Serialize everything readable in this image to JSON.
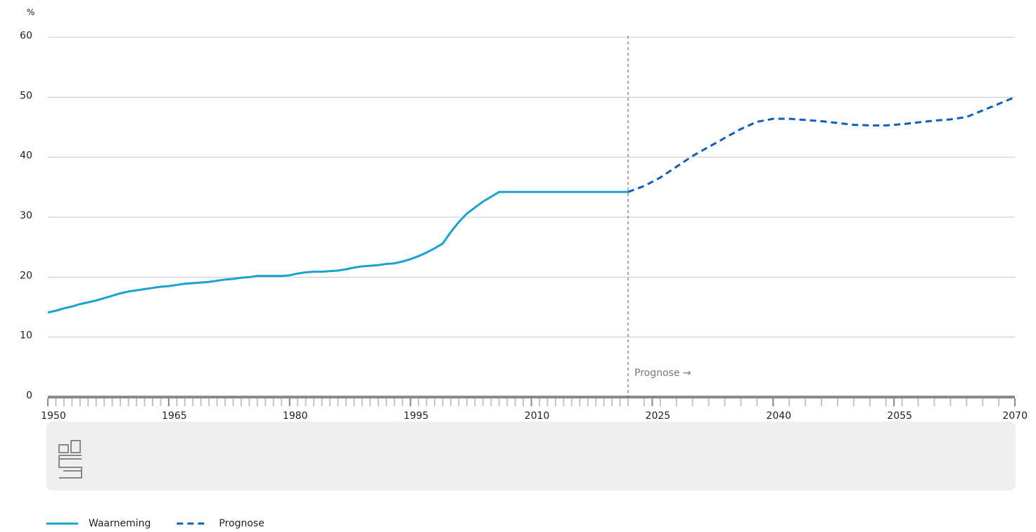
{
  "chart_data": {
    "type": "line",
    "y_unit": "%",
    "annotation": "Prognose →",
    "forecast_start": 2022,
    "xlim": [
      1950,
      2070
    ],
    "xticks": [
      1950,
      1965,
      1980,
      1995,
      2010,
      2025,
      2040,
      2055,
      2070
    ],
    "ylim": [
      0,
      60
    ],
    "yticks": [
      0,
      10,
      20,
      30,
      40,
      50,
      60
    ],
    "grid": true,
    "series": [
      {
        "name": "Waarneming",
        "color": "#1aa3d1",
        "dash": false,
        "x": [
          1950,
          1951,
          1952,
          1953,
          1954,
          1955,
          1956,
          1957,
          1958,
          1959,
          1960,
          1961,
          1962,
          1963,
          1964,
          1965,
          1966,
          1967,
          1968,
          1969,
          1970,
          1971,
          1972,
          1973,
          1974,
          1975,
          1976,
          1977,
          1978,
          1979,
          1980,
          1981,
          1982,
          1983,
          1984,
          1985,
          1986,
          1987,
          1988,
          1989,
          1990,
          1991,
          1992,
          1993,
          1994,
          1995,
          1996,
          1997,
          1998,
          1999,
          2000,
          2001,
          2002,
          2003,
          2004,
          2005,
          2006,
          2007,
          2008,
          2009,
          2010,
          2011,
          2012,
          2013,
          2014,
          2015,
          2016,
          2017,
          2018,
          2019,
          2020,
          2021,
          2022
        ],
        "values": [
          14.1,
          14.4,
          14.8,
          15.1,
          15.5,
          15.8,
          16.1,
          16.5,
          16.9,
          17.3,
          17.6,
          17.8,
          18.0,
          18.2,
          18.4,
          18.5,
          18.7,
          18.9,
          19.0,
          19.1,
          19.2,
          19.4,
          19.6,
          19.7,
          19.9,
          20.0,
          20.2,
          20.2,
          20.2,
          20.2,
          20.3,
          20.6,
          20.8,
          20.9,
          20.9,
          21.0,
          21.1,
          21.3,
          21.6,
          21.8,
          21.9,
          22.0,
          22.2,
          22.3,
          22.6,
          23.0,
          23.5,
          24.1,
          24.8,
          25.6,
          27.5,
          29.2,
          30.6,
          31.6,
          32.6,
          33.4,
          34.2,
          34.2,
          34.2,
          34.2,
          34.2,
          34.2,
          34.2,
          34.2,
          34.2,
          34.2,
          34.2,
          34.2,
          34.2,
          34.2,
          34.2,
          34.2,
          34.2
        ]
      },
      {
        "name": "Prognose",
        "color": "#0a5fbf",
        "dash": true,
        "x": [
          2022,
          2024,
          2026,
          2028,
          2030,
          2032,
          2034,
          2036,
          2038,
          2040,
          2042,
          2044,
          2046,
          2048,
          2050,
          2052,
          2054,
          2056,
          2058,
          2060,
          2062,
          2064,
          2066,
          2068,
          2070
        ],
        "values": [
          34.2,
          35.2,
          36.6,
          38.4,
          40.2,
          41.7,
          43.2,
          44.7,
          45.9,
          46.4,
          46.4,
          46.2,
          46.0,
          45.7,
          45.4,
          45.3,
          45.3,
          45.5,
          45.8,
          46.1,
          46.3,
          46.7,
          47.8,
          48.9,
          50.0
        ]
      }
    ]
  }
}
